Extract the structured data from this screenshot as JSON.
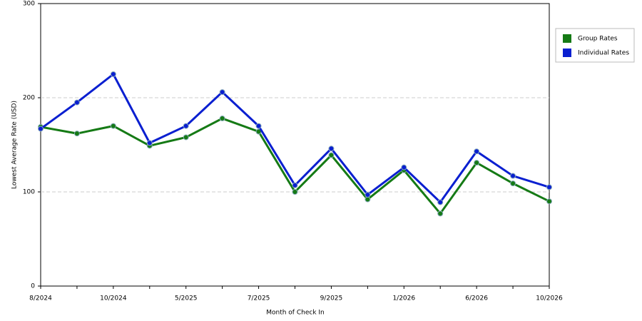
{
  "chart_data": {
    "type": "line",
    "x_label": "Month of Check In",
    "y_label": "Lowest Average Rate (USD)",
    "categories": [
      "8/2024",
      null,
      "10/2024",
      null,
      "5/2025",
      null,
      "7/2025",
      null,
      "9/2025",
      null,
      "1/2026",
      null,
      "6/2026",
      null,
      "10/2026"
    ],
    "series": [
      {
        "name": "Group Rates",
        "color": "#157a15",
        "values": [
          169,
          162,
          170,
          149,
          158,
          178,
          164,
          100,
          139,
          92,
          123,
          77,
          131,
          109,
          90
        ]
      },
      {
        "name": "Individual Rates",
        "color": "#0a1fd0",
        "values": [
          167,
          195,
          225,
          152,
          170,
          206,
          170,
          107,
          146,
          97,
          126,
          89,
          143,
          117,
          105
        ]
      }
    ],
    "ylim": [
      0,
      300
    ],
    "yticks": [
      0,
      100,
      200,
      300
    ],
    "grid": true,
    "legend": "top-right"
  }
}
